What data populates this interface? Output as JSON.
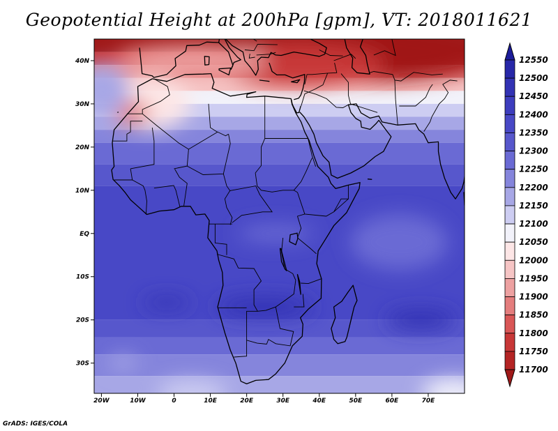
{
  "title": "Geopotential Height at 200hPa [gpm], VT: 2018011621",
  "credit": "GrADS: IGES/COLA",
  "colors": {
    "high": "#1c1c9a",
    "mid": "#ffffff",
    "low": "#a01919",
    "coast": "#000000"
  },
  "map": {
    "lon_range": [
      -22,
      80
    ],
    "lat_range": [
      -37,
      45
    ],
    "lon_ticks": [
      {
        "value": -20,
        "label": "20W"
      },
      {
        "value": -10,
        "label": "10W"
      },
      {
        "value": 0,
        "label": "0"
      },
      {
        "value": 10,
        "label": "10E"
      },
      {
        "value": 20,
        "label": "20E"
      },
      {
        "value": 30,
        "label": "30E"
      },
      {
        "value": 40,
        "label": "40E"
      },
      {
        "value": 50,
        "label": "50E"
      },
      {
        "value": 60,
        "label": "60E"
      },
      {
        "value": 70,
        "label": "70E"
      }
    ],
    "lat_ticks": [
      {
        "value": 40,
        "label": "40N"
      },
      {
        "value": 30,
        "label": "30N"
      },
      {
        "value": 20,
        "label": "20N"
      },
      {
        "value": 10,
        "label": "10N"
      },
      {
        "value": 0,
        "label": "EQ"
      },
      {
        "value": -10,
        "label": "10S"
      },
      {
        "value": -20,
        "label": "20S"
      },
      {
        "value": -30,
        "label": "30S"
      }
    ]
  },
  "colorbar": {
    "levels": [
      12550,
      12500,
      12450,
      12400,
      12350,
      12300,
      12250,
      12200,
      12150,
      12100,
      12050,
      12000,
      11950,
      11900,
      11850,
      11800,
      11750,
      11700
    ],
    "colors": [
      "#1c1c9a",
      "#2727a8",
      "#3232b4",
      "#3d3dbe",
      "#4848c6",
      "#5757cc",
      "#6a6ad4",
      "#8585dc",
      "#a7a7e6",
      "#cdcdf2",
      "#f2f2fa",
      "#fde6e6",
      "#f6c5c5",
      "#eda1a1",
      "#e47d7d",
      "#d95656",
      "#c83737",
      "#b42424",
      "#a01919"
    ]
  }
}
